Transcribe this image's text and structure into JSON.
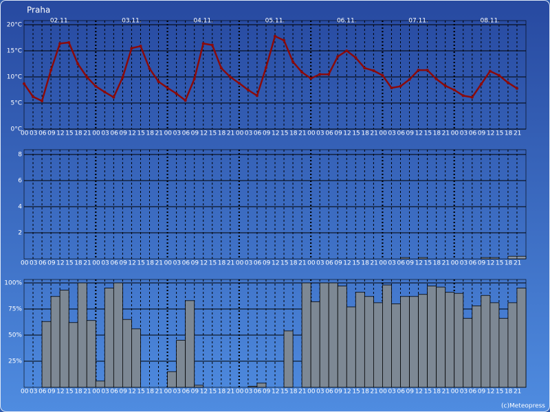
{
  "credit": "(c)Meteopress",
  "chart_data": [
    {
      "type": "line",
      "title": "Praha",
      "days": [
        "02.11.",
        "03.11.",
        "04.11.",
        "05.11.",
        "06.11.",
        "07.11.",
        "08.11."
      ],
      "categories": [
        "00",
        "03",
        "06",
        "09",
        "12",
        "15",
        "18",
        "21",
        "00",
        "03",
        "06",
        "09",
        "12",
        "15",
        "18",
        "21",
        "00",
        "03",
        "06",
        "09",
        "12",
        "15",
        "18",
        "21",
        "00",
        "03",
        "06",
        "09",
        "12",
        "15",
        "18",
        "21",
        "00",
        "03",
        "06",
        "09",
        "12",
        "15",
        "18",
        "21",
        "00",
        "03",
        "06",
        "09",
        "12",
        "15",
        "18",
        "21",
        "00",
        "03",
        "06",
        "09",
        "12",
        "15",
        "18",
        "21"
      ],
      "values": [
        8.7,
        6.2,
        5.4,
        11.3,
        16.4,
        16.6,
        12.5,
        10,
        8.2,
        7.1,
        6.1,
        9.9,
        15.5,
        15.9,
        11.6,
        9.1,
        7.9,
        6.8,
        5.5,
        9.6,
        16.4,
        16.1,
        11.7,
        10,
        8.8,
        7.5,
        6.4,
        11.8,
        17.8,
        17,
        12.9,
        10.9,
        9.7,
        10.5,
        10.5,
        13.9,
        15,
        13.7,
        11.7,
        11.2,
        10.3,
        7.9,
        8.2,
        9.5,
        11.3,
        11.3,
        9.6,
        8.3,
        7.5,
        6.4,
        6.1,
        8.6,
        11.1,
        10.3,
        8.9,
        7.8
      ],
      "color": "#8b0a0a",
      "ylim": [
        0,
        20
      ],
      "yticks": [
        {
          "value": 0,
          "label": "0°C"
        },
        {
          "value": 5,
          "label": "5°C"
        },
        {
          "value": 10,
          "label": "10°C"
        },
        {
          "value": 15,
          "label": "15°C"
        },
        {
          "value": 20,
          "label": "20°C"
        }
      ],
      "grid": true
    },
    {
      "type": "bar",
      "categories": [
        "00",
        "03",
        "06",
        "09",
        "12",
        "15",
        "18",
        "21",
        "00",
        "03",
        "06",
        "09",
        "12",
        "15",
        "18",
        "21",
        "00",
        "03",
        "06",
        "09",
        "12",
        "15",
        "18",
        "21",
        "00",
        "03",
        "06",
        "09",
        "12",
        "15",
        "18",
        "21",
        "00",
        "03",
        "06",
        "09",
        "12",
        "15",
        "18",
        "21",
        "00",
        "03",
        "06",
        "09",
        "12",
        "15",
        "18",
        "21",
        "00",
        "03",
        "06",
        "09",
        "12",
        "15",
        "18",
        "21"
      ],
      "values": [
        0,
        0,
        0,
        0,
        0,
        0,
        0,
        0,
        0,
        0,
        0,
        0,
        0,
        0,
        0,
        0,
        0,
        0,
        0,
        0,
        0,
        0,
        0,
        0,
        0,
        0,
        0,
        0,
        0,
        0,
        0,
        0,
        0,
        0,
        0,
        0,
        0,
        0,
        0,
        0,
        0,
        0,
        0.1,
        0,
        0.1,
        0,
        0,
        0,
        0,
        0,
        0,
        0.1,
        0.1,
        0,
        0.2,
        0.2
      ],
      "color": "#8a96a6",
      "ylim": [
        0,
        8
      ],
      "yticks": [
        2,
        4,
        6,
        8
      ],
      "grid": true
    },
    {
      "type": "bar",
      "categories": [
        "00",
        "03",
        "06",
        "09",
        "12",
        "15",
        "18",
        "21",
        "00",
        "03",
        "06",
        "09",
        "12",
        "15",
        "18",
        "21",
        "00",
        "03",
        "06",
        "09",
        "12",
        "15",
        "18",
        "21",
        "00",
        "03",
        "06",
        "09",
        "12",
        "15",
        "18",
        "21",
        "00",
        "03",
        "06",
        "09",
        "12",
        "15",
        "18",
        "21",
        "00",
        "03",
        "06",
        "09",
        "12",
        "15",
        "18",
        "21",
        "00",
        "03",
        "06",
        "09",
        "12",
        "15",
        "18",
        "21"
      ],
      "values": [
        0,
        0,
        63,
        87,
        93,
        62,
        100,
        64,
        6,
        95,
        100,
        65,
        56,
        0,
        0,
        0,
        15,
        45,
        83,
        2,
        0,
        0,
        0,
        0,
        0,
        1,
        4,
        0,
        0,
        54,
        0,
        100,
        82,
        100,
        100,
        97,
        77,
        91,
        87,
        81,
        98,
        80,
        87,
        87,
        89,
        97,
        96,
        91,
        90,
        66,
        78,
        88,
        81,
        66,
        81,
        95
      ],
      "color": "#7d8894",
      "ylim": [
        0,
        100
      ],
      "yticks": [
        {
          "value": 25,
          "label": "25%"
        },
        {
          "value": 50,
          "label": "50%"
        },
        {
          "value": 75,
          "label": "75%"
        },
        {
          "value": 100,
          "label": "100%"
        }
      ],
      "grid": true
    }
  ]
}
